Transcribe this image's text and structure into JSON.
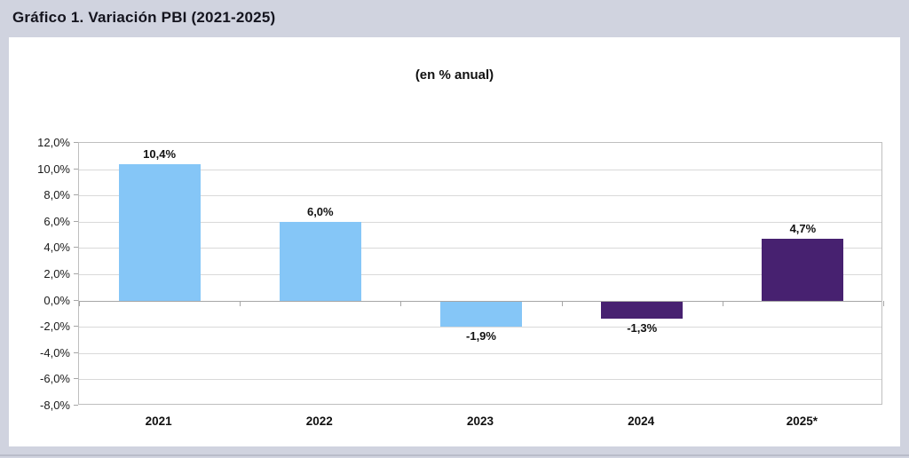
{
  "header": {
    "title": "Gráfico 1. Variación PBI (2021-2025)"
  },
  "chart_data": {
    "type": "bar",
    "title": "Gráfico 1. Variación PBI (2021-2025)",
    "subtitle": "(en % anual)",
    "categories": [
      "2021",
      "2022",
      "2023",
      "2024",
      "2025*"
    ],
    "values": [
      10.4,
      6.0,
      -1.9,
      -1.3,
      4.7
    ],
    "value_labels": [
      "10,4%",
      "6,0%",
      "-1,9%",
      "-1,3%",
      "4,7%"
    ],
    "bar_colors": [
      "#85c6f7",
      "#85c6f7",
      "#85c6f7",
      "#472170",
      "#472170"
    ],
    "xlabel": "",
    "ylabel": "",
    "ylim": [
      -8,
      12
    ],
    "y_tick_step": 2,
    "y_tick_labels": [
      "12,0%",
      "10,0%",
      "8,0%",
      "6,0%",
      "4,0%",
      "2,0%",
      "0,0%",
      "-2,0%",
      "-4,0%",
      "-6,0%",
      "-8,0%"
    ],
    "grid": true,
    "legend": "none"
  },
  "colors": {
    "background": "#d0d3df",
    "panel": "#ffffff",
    "gridline": "#d9d9d9",
    "plot_border": "#bfbfbf",
    "axis": "#a6a6a6",
    "light_blue_bar": "#85c6f7",
    "purple_bar": "#472170"
  }
}
